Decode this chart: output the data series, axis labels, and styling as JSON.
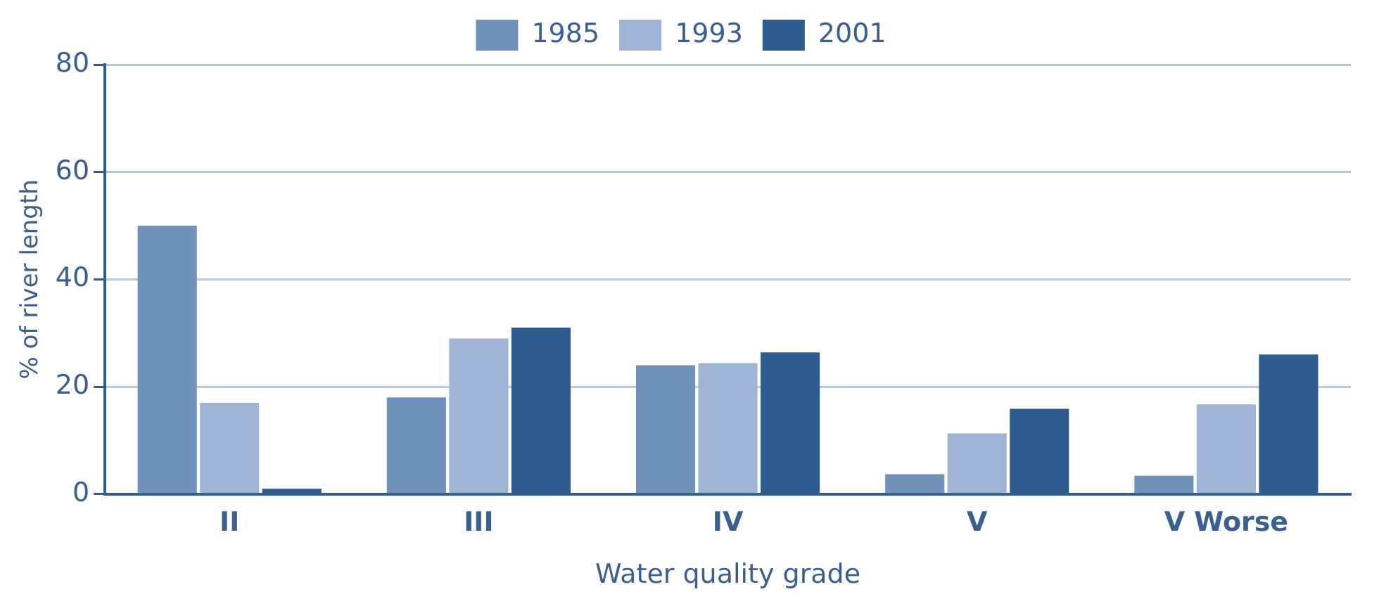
{
  "chart_data": {
    "type": "bar",
    "xlabel": "Water quality grade",
    "ylabel": "% of river length",
    "categories": [
      "II",
      "III",
      "IV",
      "V",
      "V Worse"
    ],
    "series": [
      {
        "name": "1985",
        "color": "#7092bb",
        "values": [
          50,
          18,
          24,
          3.7,
          3.4
        ]
      },
      {
        "name": "1993",
        "color": "#9fb3d4",
        "values": [
          17,
          29,
          24.4,
          11.3,
          16.7
        ]
      },
      {
        "name": "2001",
        "color": "#2f5c8f",
        "values": [
          1,
          31,
          26.4,
          15.9,
          26
        ]
      }
    ],
    "ylim": [
      0,
      80
    ],
    "yticks": [
      0,
      20,
      40,
      60,
      80
    ],
    "grid": "y",
    "legend": "top"
  }
}
